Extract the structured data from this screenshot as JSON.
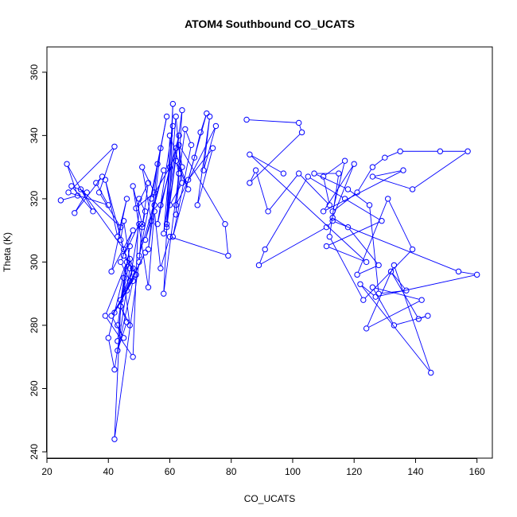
{
  "chart_data": {
    "type": "line",
    "title": "ATOM4 Southbound CO_UCATS",
    "xlabel": "CO_UCATS",
    "ylabel": "Theta (K)",
    "xlim": [
      20,
      165
    ],
    "ylim": [
      238,
      368
    ],
    "x_ticks": [
      20,
      40,
      60,
      80,
      100,
      120,
      140,
      160
    ],
    "y_ticks": [
      240,
      260,
      280,
      300,
      320,
      340,
      360
    ],
    "grid": false,
    "line_color": "#0000ff",
    "series": [
      {
        "x": [
          24.5,
          30,
          26.5,
          35,
          28,
          33,
          29,
          38,
          36,
          40,
          27,
          42,
          37,
          44,
          31,
          45,
          39,
          43,
          46,
          41,
          48,
          44,
          47,
          50,
          45,
          49,
          42,
          52,
          46,
          48,
          44,
          47,
          43,
          45,
          41,
          49,
          47,
          44,
          46,
          43,
          48,
          45,
          44,
          47,
          42,
          40,
          46,
          39,
          48,
          50,
          52,
          51,
          53,
          49,
          55,
          51,
          54,
          52,
          58,
          50,
          57,
          55,
          53,
          56,
          59,
          54,
          60,
          56,
          61,
          58,
          62,
          57,
          63,
          59,
          62,
          64,
          60,
          61,
          58,
          63,
          62,
          66,
          60,
          59,
          64,
          62,
          63,
          65,
          67,
          61,
          68,
          70,
          72,
          66,
          74,
          69,
          73,
          71,
          75,
          62,
          64,
          63,
          78,
          79,
          60,
          57,
          55,
          53,
          48,
          51,
          50,
          42,
          44,
          47,
          45,
          43
        ],
        "y": [
          319.5,
          321,
          331,
          316,
          324,
          322,
          315.5,
          327,
          325,
          318,
          322,
          336.5,
          322,
          311,
          323,
          304,
          326,
          308,
          320,
          297,
          310,
          300,
          294,
          312,
          302,
          296,
          284,
          303,
          291,
          298,
          288,
          305,
          280,
          276,
          283,
          296,
          301,
          286,
          281,
          272,
          294,
          313,
          307,
          298,
          266,
          276,
          300,
          283,
          270,
          320,
          316,
          311,
          325,
          317,
          322,
          330,
          313,
          307,
          329,
          302,
          336,
          318,
          304,
          331,
          346,
          320,
          330,
          312,
          343,
          309,
          336,
          318,
          340,
          311,
          346,
          325,
          318,
          350,
          290,
          328,
          332,
          323,
          340,
          312,
          348,
          315,
          328,
          342,
          337,
          308,
          333,
          341,
          347,
          326,
          336,
          318,
          346,
          329,
          343,
          318,
          330,
          337,
          312,
          302,
          308,
          298,
          316,
          292,
          324,
          312,
          300,
          244,
          286,
          280,
          295,
          275
        ]
      },
      {
        "x": [
          85,
          102,
          103,
          86,
          88,
          92,
          102,
          112,
          110,
          117,
          113,
          121,
          126,
          130,
          135,
          148,
          157,
          139,
          126,
          136,
          110,
          120,
          113,
          118,
          128,
          121,
          131,
          139,
          123,
          112,
          115,
          107,
          118,
          125,
          128,
          137,
          132,
          141,
          144,
          133,
          126,
          142,
          124,
          133,
          145,
          122,
          127,
          160,
          154,
          113,
          111,
          89,
          91,
          105,
          117,
          129,
          111,
          124,
          86,
          97
        ],
        "y": [
          345,
          344,
          341,
          325,
          329,
          316,
          328,
          318,
          327,
          332,
          316,
          322,
          330,
          333,
          335,
          335,
          335,
          323,
          327,
          329,
          316,
          331,
          314,
          311,
          299,
          296,
          320,
          304,
          288,
          308,
          328,
          328,
          323,
          318,
          290,
          291,
          297,
          282,
          283,
          280,
          292,
          288,
          279,
          299,
          265,
          293,
          289,
          296,
          297,
          313,
          311,
          299,
          304,
          327,
          320,
          313,
          305,
          300,
          334,
          328
        ]
      }
    ]
  }
}
